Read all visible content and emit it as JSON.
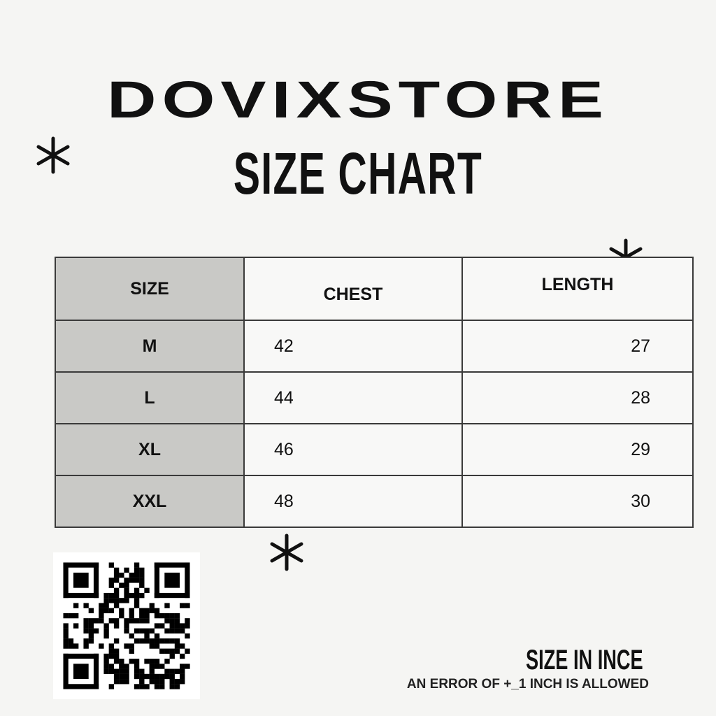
{
  "brand": "DOVIXSTORE",
  "subtitle": "SIZE CHART",
  "table": {
    "headers": [
      "SIZE",
      "CHEST",
      "LENGTH"
    ],
    "rows": [
      {
        "size": "M",
        "chest": "42",
        "length": "27"
      },
      {
        "size": "L",
        "chest": "44",
        "length": "28"
      },
      {
        "size": "XL",
        "chest": "46",
        "length": "29"
      },
      {
        "size": "XXL",
        "chest": "48",
        "length": "30"
      }
    ]
  },
  "note": {
    "title": "SIZE IN INCE",
    "subtitle": "AN ERROR OF +_1 INCH IS ALLOWED"
  },
  "colors": {
    "background": "#f5f5f3",
    "size_column": "#c9c9c6",
    "text": "#111111"
  },
  "icons": [
    "asterisk-icon",
    "qr-code"
  ]
}
